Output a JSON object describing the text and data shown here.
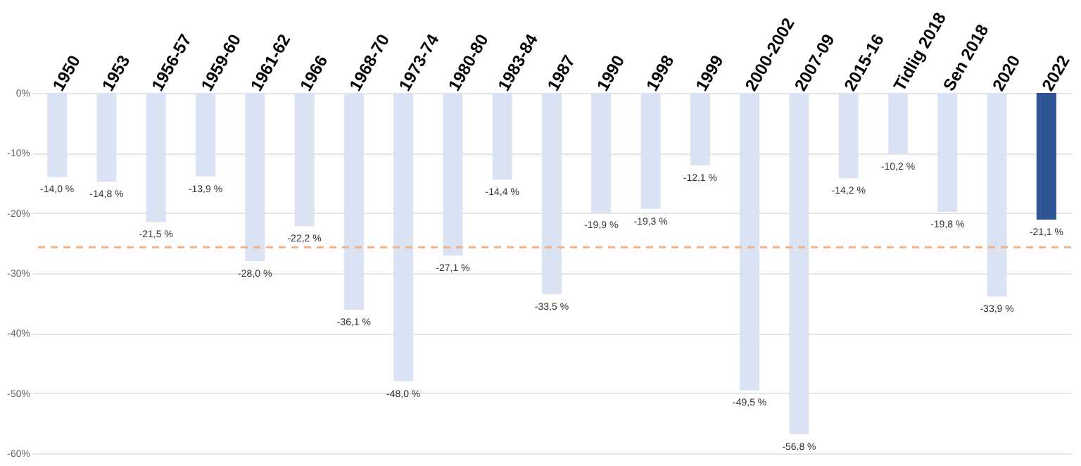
{
  "chart_data": {
    "type": "bar",
    "categories": [
      "1950",
      "1953",
      "1956-57",
      "1959-60",
      "1961-62",
      "1966",
      "1968-70",
      "1973-74",
      "1980-80",
      "1983-84",
      "1987",
      "1990",
      "1998",
      "1999",
      "2000-2002",
      "2007-09",
      "2015-16",
      "Tidlig 2018",
      "Sen 2018",
      "2020",
      "2022"
    ],
    "values": [
      -14.0,
      -14.8,
      -21.5,
      -13.9,
      -28.0,
      -22.2,
      -36.1,
      -48.0,
      -27.1,
      -14.4,
      -33.5,
      -19.9,
      -19.3,
      -12.1,
      -49.5,
      -56.8,
      -14.2,
      -10.2,
      -19.8,
      -33.9,
      -21.1
    ],
    "value_labels": [
      "-14,0 %",
      "-14,8 %",
      "-21,5 %",
      "-13,9 %",
      "-28,0 %",
      "-22,2 %",
      "-36,1 %",
      "-48,0 %",
      "-27,1 %",
      "-14,4 %",
      "-33,5 %",
      "-19,9 %",
      "-19,3 %",
      "-12,1 %",
      "-49,5 %",
      "-56,8 %",
      "-14,2 %",
      "-10,2 %",
      "-19,8 %",
      "-33,9 %",
      "-21,1 %"
    ],
    "colors": [
      "#dae3f3",
      "#dae3f3",
      "#dae3f3",
      "#dae3f3",
      "#dae3f3",
      "#dae3f3",
      "#dae3f3",
      "#dae3f3",
      "#dae3f3",
      "#dae3f3",
      "#dae3f3",
      "#dae3f3",
      "#dae3f3",
      "#dae3f3",
      "#dae3f3",
      "#dae3f3",
      "#dae3f3",
      "#dae3f3",
      "#dae3f3",
      "#dae3f3",
      "#2f5597"
    ],
    "ylim": [
      -60,
      0
    ],
    "yticks": [
      {
        "value": 0,
        "label": "0%"
      },
      {
        "value": -10,
        "label": "-10%"
      },
      {
        "value": -20,
        "label": "-20%"
      },
      {
        "value": -30,
        "label": "-30%"
      },
      {
        "value": -40,
        "label": "-40%"
      },
      {
        "value": -50,
        "label": "-50%"
      },
      {
        "value": -60,
        "label": "-60%"
      }
    ],
    "grid": "y",
    "ref_lines": [
      {
        "axis": "y",
        "value": -25.7,
        "color": "#f4b183",
        "line_style": "dashed"
      }
    ]
  }
}
